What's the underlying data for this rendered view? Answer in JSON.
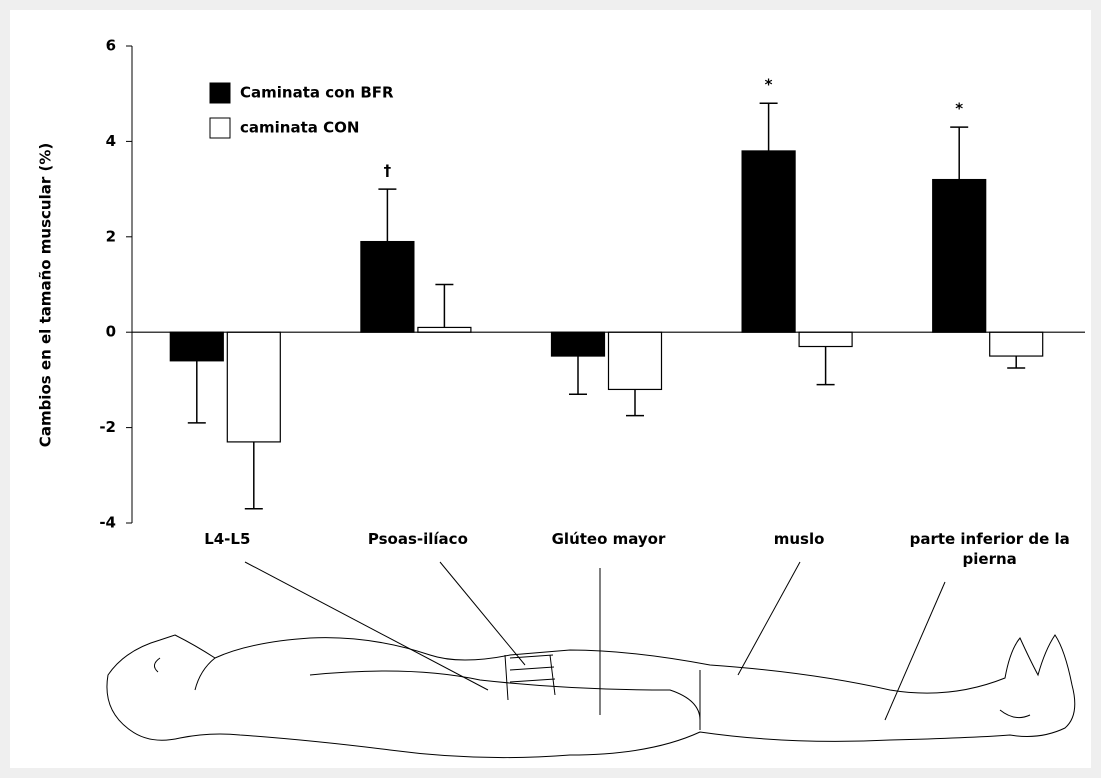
{
  "chart_data": {
    "type": "bar",
    "ylabel": "Cambios en el tamaño muscular (%)",
    "categories": [
      "L4-L5",
      "Psoas-ilíaco",
      "Glúteo mayor",
      "muslo",
      "parte inferior de la pierna"
    ],
    "series": [
      {
        "name": "Caminata con BFR",
        "color": "#000000",
        "values": [
          -0.6,
          1.9,
          -0.5,
          3.8,
          3.2
        ],
        "errors": [
          1.3,
          1.1,
          0.8,
          1.0,
          1.1
        ],
        "annotations": [
          null,
          "†",
          null,
          "*",
          "*"
        ]
      },
      {
        "name": "caminata CON",
        "color": "#ffffff",
        "values": [
          -2.3,
          0.1,
          -1.2,
          -0.3,
          -0.5
        ],
        "errors": [
          1.4,
          0.9,
          0.55,
          0.8,
          0.25
        ]
      }
    ],
    "ylim": [
      -4,
      6
    ],
    "yticks": [
      -4,
      -2,
      0,
      2,
      4,
      6
    ],
    "grid": false,
    "legend": "upper left"
  }
}
